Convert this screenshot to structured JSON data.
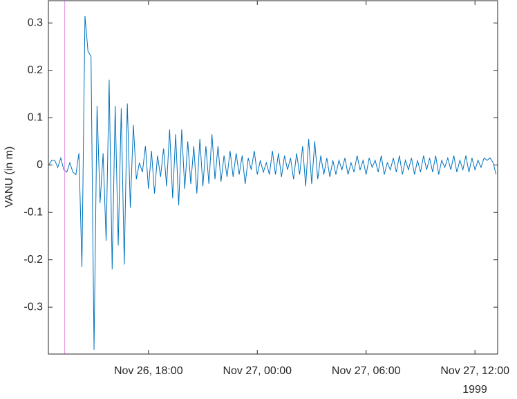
{
  "chart_data": {
    "type": "line",
    "ylabel": "VANU (in m)",
    "x_secondary_label": "1999",
    "x": [
      "1999-11-26T12:30",
      "1999-11-26T12:40",
      "1999-11-26T12:50",
      "1999-11-26T13:00",
      "1999-11-26T13:10",
      "1999-11-26T13:20",
      "1999-11-26T13:30",
      "1999-11-26T13:40",
      "1999-11-26T13:50",
      "1999-11-26T14:00",
      "1999-11-26T14:10",
      "1999-11-26T14:20",
      "1999-11-26T14:30",
      "1999-11-26T14:40",
      "1999-11-26T14:50",
      "1999-11-26T15:00",
      "1999-11-26T15:10",
      "1999-11-26T15:20",
      "1999-11-26T15:30",
      "1999-11-26T15:40",
      "1999-11-26T15:50",
      "1999-11-26T16:00",
      "1999-11-26T16:10",
      "1999-11-26T16:20",
      "1999-11-26T16:30",
      "1999-11-26T16:40",
      "1999-11-26T16:50",
      "1999-11-26T17:00",
      "1999-11-26T17:10",
      "1999-11-26T17:20",
      "1999-11-26T17:30",
      "1999-11-26T17:40",
      "1999-11-26T17:50",
      "1999-11-26T18:00",
      "1999-11-26T18:10",
      "1999-11-26T18:20",
      "1999-11-26T18:30",
      "1999-11-26T18:40",
      "1999-11-26T18:50",
      "1999-11-26T19:00",
      "1999-11-26T19:10",
      "1999-11-26T19:20",
      "1999-11-26T19:30",
      "1999-11-26T19:40",
      "1999-11-26T19:50",
      "1999-11-26T20:00",
      "1999-11-26T20:10",
      "1999-11-26T20:20",
      "1999-11-26T20:30",
      "1999-11-26T20:40",
      "1999-11-26T20:50",
      "1999-11-26T21:00",
      "1999-11-26T21:10",
      "1999-11-26T21:20",
      "1999-11-26T21:30",
      "1999-11-26T21:40",
      "1999-11-26T21:50",
      "1999-11-26T22:00",
      "1999-11-26T22:10",
      "1999-11-26T22:20",
      "1999-11-26T22:30",
      "1999-11-26T22:40",
      "1999-11-26T22:50",
      "1999-11-26T23:00",
      "1999-11-26T23:10",
      "1999-11-26T23:20",
      "1999-11-26T23:30",
      "1999-11-26T23:40",
      "1999-11-26T23:50",
      "1999-11-27T00:00",
      "1999-11-27T00:10",
      "1999-11-27T00:20",
      "1999-11-27T00:30",
      "1999-11-27T00:40",
      "1999-11-27T00:50",
      "1999-11-27T01:00",
      "1999-11-27T01:10",
      "1999-11-27T01:20",
      "1999-11-27T01:30",
      "1999-11-27T01:40",
      "1999-11-27T01:50",
      "1999-11-27T02:00",
      "1999-11-27T02:10",
      "1999-11-27T02:20",
      "1999-11-27T02:30",
      "1999-11-27T02:40",
      "1999-11-27T02:50",
      "1999-11-27T03:00",
      "1999-11-27T03:10",
      "1999-11-27T03:20",
      "1999-11-27T03:30",
      "1999-11-27T03:40",
      "1999-11-27T03:50",
      "1999-11-27T04:00",
      "1999-11-27T04:10",
      "1999-11-27T04:20",
      "1999-11-27T04:30",
      "1999-11-27T04:40",
      "1999-11-27T04:50",
      "1999-11-27T05:00",
      "1999-11-27T05:10",
      "1999-11-27T05:20",
      "1999-11-27T05:30",
      "1999-11-27T05:40",
      "1999-11-27T05:50",
      "1999-11-27T06:00",
      "1999-11-27T06:10",
      "1999-11-27T06:20",
      "1999-11-27T06:30",
      "1999-11-27T06:40",
      "1999-11-27T06:50",
      "1999-11-27T07:00",
      "1999-11-27T07:10",
      "1999-11-27T07:20",
      "1999-11-27T07:30",
      "1999-11-27T07:40",
      "1999-11-27T07:50",
      "1999-11-27T08:00",
      "1999-11-27T08:10",
      "1999-11-27T08:20",
      "1999-11-27T08:30",
      "1999-11-27T08:40",
      "1999-11-27T08:50",
      "1999-11-27T09:00",
      "1999-11-27T09:10",
      "1999-11-27T09:20",
      "1999-11-27T09:30",
      "1999-11-27T09:40",
      "1999-11-27T09:50",
      "1999-11-27T10:00",
      "1999-11-27T10:10",
      "1999-11-27T10:20",
      "1999-11-27T10:30",
      "1999-11-27T10:40",
      "1999-11-27T10:50",
      "1999-11-27T11:00",
      "1999-11-27T11:10",
      "1999-11-27T11:20",
      "1999-11-27T11:30",
      "1999-11-27T11:40",
      "1999-11-27T11:50",
      "1999-11-27T12:00",
      "1999-11-27T12:10",
      "1999-11-27T12:20",
      "1999-11-27T12:30",
      "1999-11-27T12:40",
      "1999-11-27T12:50",
      "1999-11-27T13:00",
      "1999-11-27T13:10"
    ],
    "series": [
      {
        "color": "#0072bd",
        "values": [
          0,
          0.01,
          0.01,
          -0.005,
          0.015,
          -0.01,
          -0.015,
          0.005,
          -0.015,
          -0.02,
          0.025,
          -0.215,
          0.315,
          0.24,
          0.23,
          -0.39,
          0.125,
          -0.08,
          0.025,
          -0.16,
          0.18,
          -0.22,
          0.125,
          -0.17,
          0.12,
          -0.21,
          0.13,
          -0.09,
          0.085,
          -0.03,
          0.005,
          -0.015,
          0.04,
          -0.05,
          0.03,
          -0.06,
          0.02,
          -0.025,
          0.035,
          -0.045,
          0.075,
          -0.07,
          0.065,
          -0.085,
          0.075,
          -0.05,
          0.05,
          -0.04,
          0.04,
          -0.06,
          0.055,
          -0.045,
          0.04,
          -0.04,
          0.065,
          -0.03,
          0.04,
          -0.035,
          0.02,
          -0.025,
          0.03,
          -0.025,
          0.025,
          -0.02,
          0.02,
          -0.04,
          0.015,
          -0.01,
          0.03,
          -0.02,
          0.01,
          -0.015,
          0.005,
          -0.02,
          0.03,
          -0.02,
          0.025,
          -0.025,
          0.02,
          -0.01,
          0.015,
          -0.03,
          0.025,
          -0.02,
          0.04,
          -0.045,
          0.055,
          -0.04,
          0.05,
          -0.03,
          0.02,
          -0.02,
          0.015,
          -0.025,
          0.01,
          -0.02,
          0.01,
          -0.01,
          0.015,
          -0.02,
          0.005,
          -0.015,
          0.02,
          -0.01,
          0.01,
          -0.02,
          0.015,
          -0.005,
          0.01,
          -0.015,
          0.02,
          -0.02,
          0.005,
          -0.01,
          0.015,
          -0.015,
          0.02,
          -0.02,
          0.01,
          -0.01,
          0.015,
          -0.02,
          0.01,
          -0.015,
          0.02,
          -0.01,
          0.015,
          -0.015,
          0.02,
          -0.02,
          0.01,
          -0.005,
          0.015,
          -0.01,
          0.02,
          -0.015,
          0.01,
          -0.01,
          0.02,
          -0.015,
          0.015,
          -0.01,
          0.01,
          -0.005,
          0.015,
          0.01,
          0.015,
          0.005,
          -0.02
        ]
      }
    ],
    "xlim": [
      "1999-11-26T12:29",
      "1999-11-27T13:15"
    ],
    "xticks": [
      {
        "value": "1999-11-26T18:00",
        "label": "Nov 26, 18:00"
      },
      {
        "value": "1999-11-27T00:00",
        "label": "Nov 27, 00:00"
      },
      {
        "value": "1999-11-27T06:00",
        "label": "Nov 27, 06:00"
      },
      {
        "value": "1999-11-27T12:00",
        "label": "Nov 27, 12:00"
      }
    ],
    "ylim": [
      -0.399,
      0.347
    ],
    "yticks": [
      -0.3,
      -0.2,
      -0.1,
      0,
      0.1,
      0.2,
      0.3
    ],
    "event_line": {
      "x": "1999-11-26T13:23",
      "color": "#e68ee6"
    }
  }
}
